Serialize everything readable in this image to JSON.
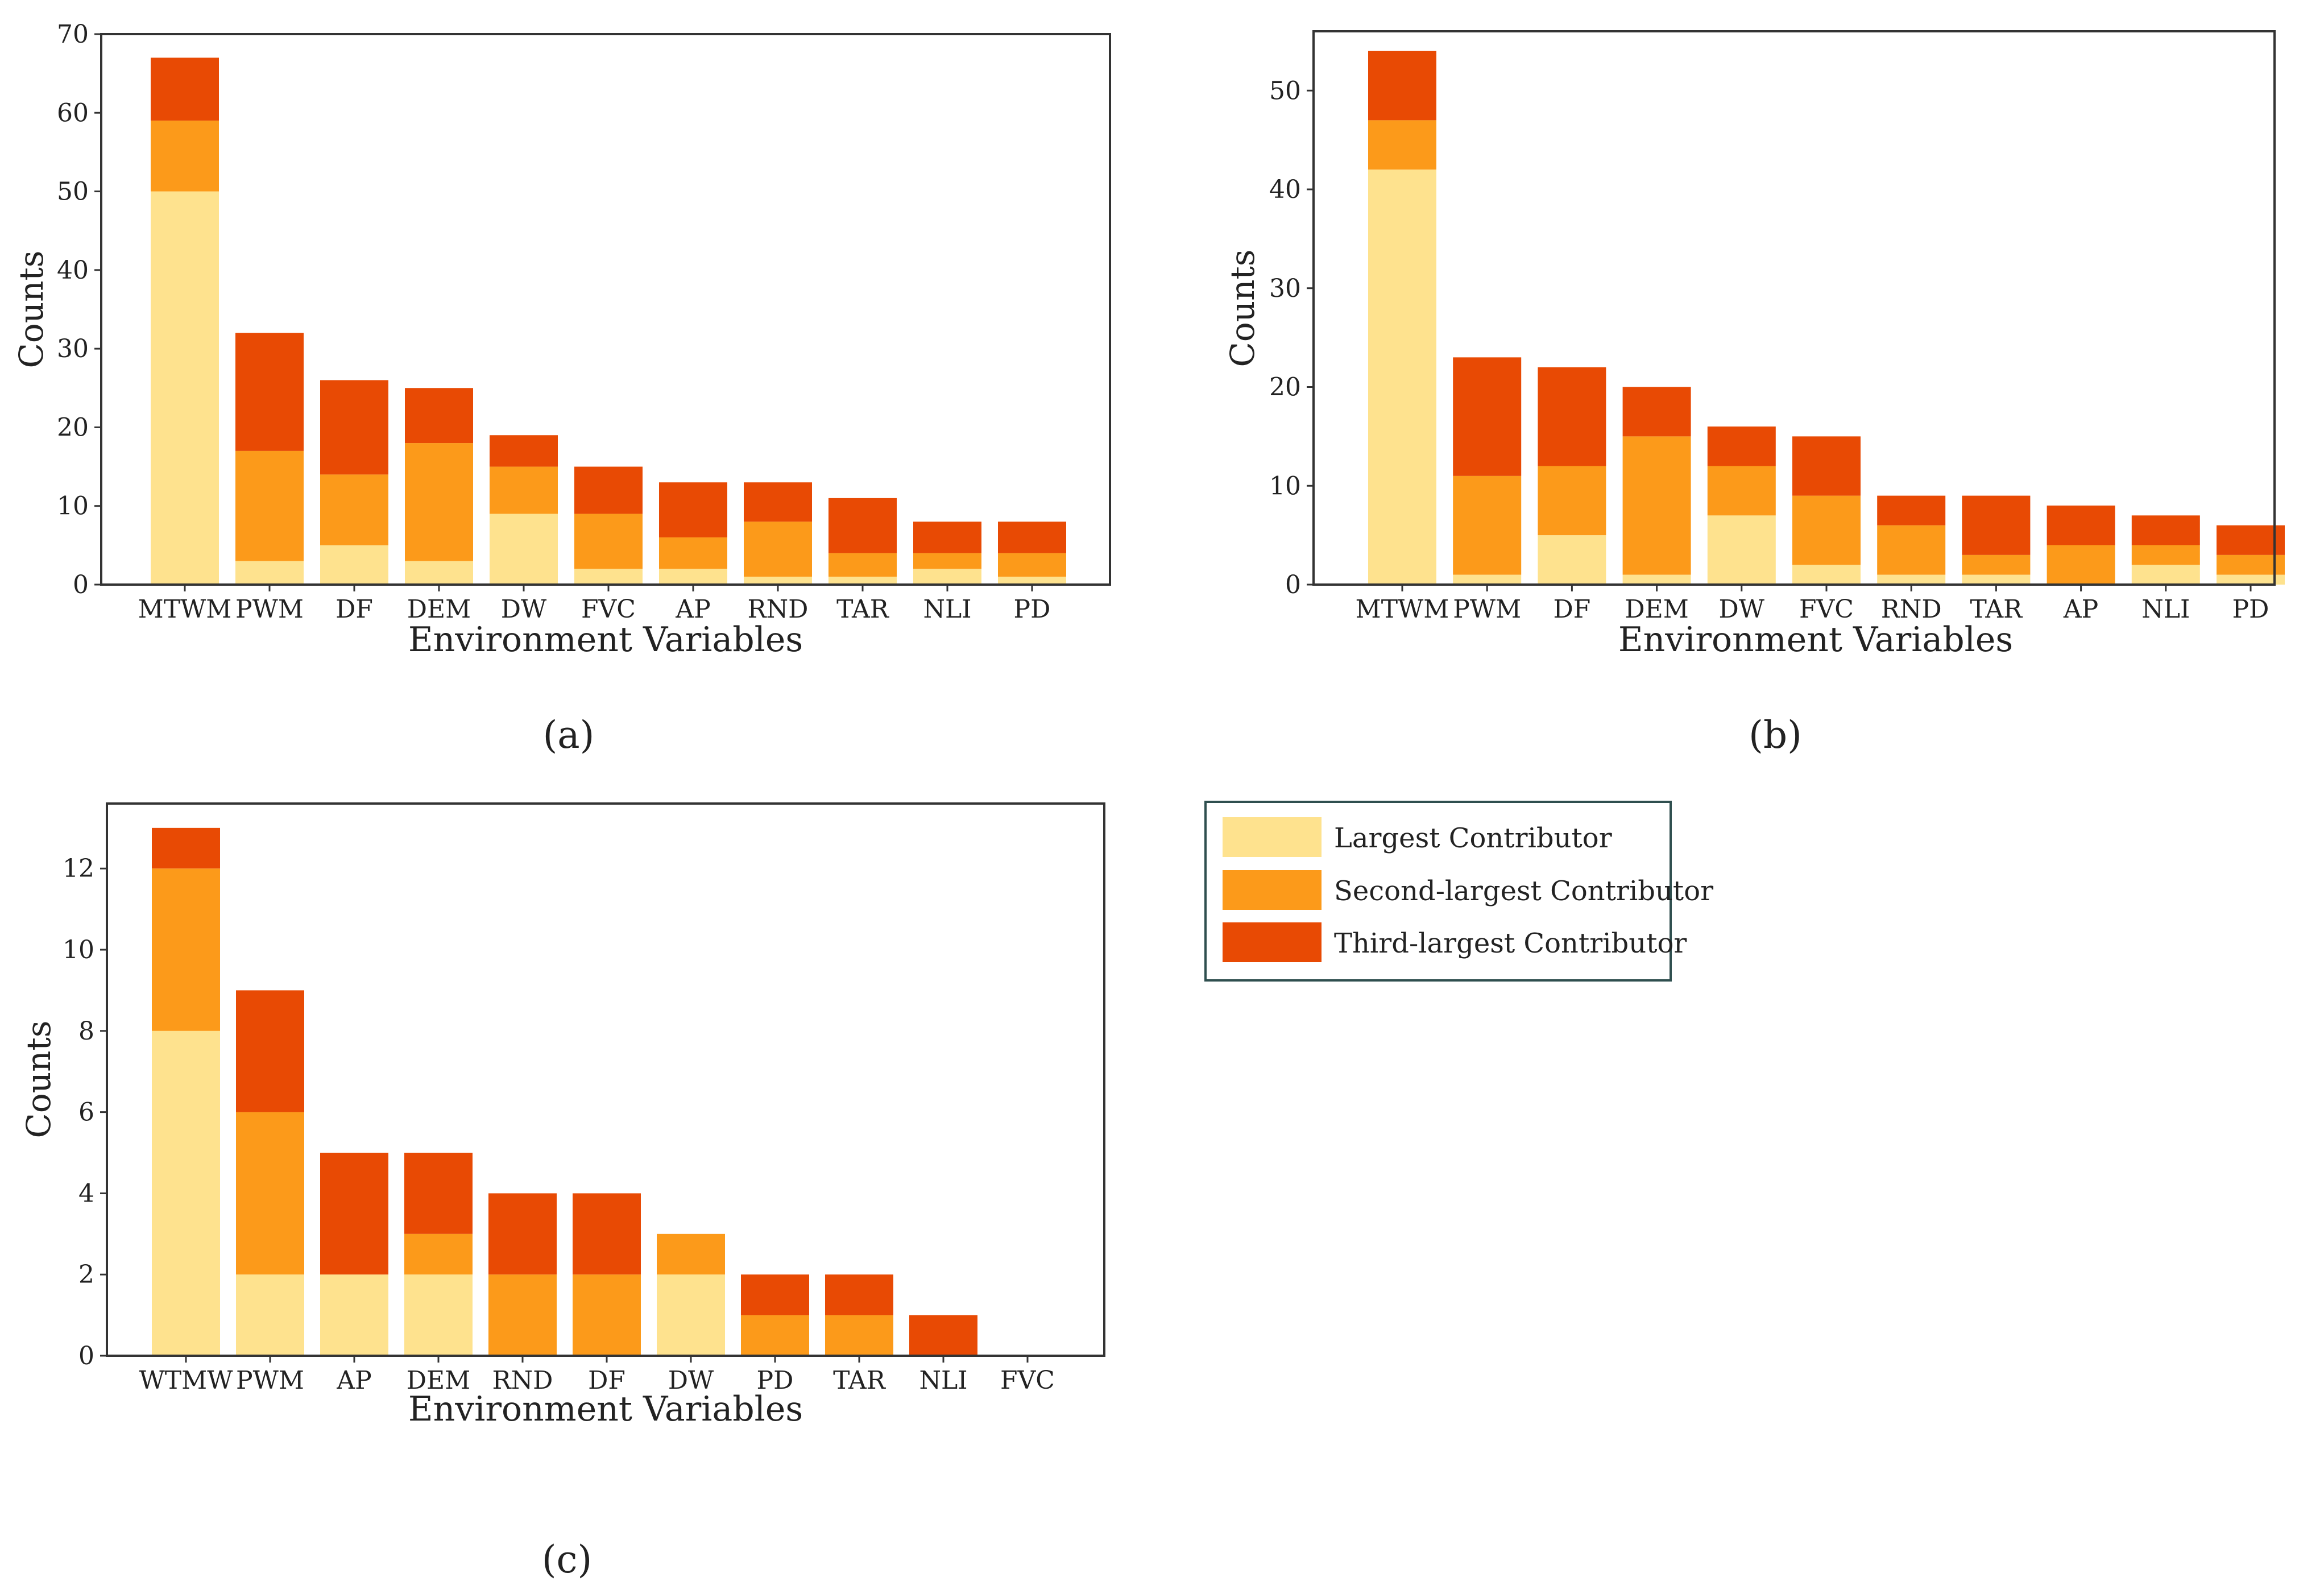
{
  "colors": {
    "largest": "#FEE28E",
    "second": "#FC9A1A",
    "third": "#E84A04",
    "axis": "#333333",
    "legend_border": "#2F4F4F"
  },
  "legend": {
    "items": [
      {
        "label": "Largest Contributor",
        "series": "largest"
      },
      {
        "label": "Second-largest Contributor",
        "series": "second"
      },
      {
        "label": "Third-largest Contributor",
        "series": "third"
      }
    ]
  },
  "chart_data": [
    {
      "id": "a",
      "type": "bar",
      "stacked": true,
      "panel_label": "(a)",
      "xlabel": "Environment Variables",
      "ylabel": "Counts",
      "ylim": [
        0,
        70
      ],
      "yticks": [
        0,
        10,
        20,
        30,
        40,
        50,
        60,
        70
      ],
      "categories": [
        "MTWM",
        "PWM",
        "DF",
        "DEM",
        "DW",
        "FVC",
        "AP",
        "RND",
        "TAR",
        "NLI",
        "PD"
      ],
      "series": [
        {
          "name": "Largest Contributor",
          "key": "largest",
          "values": [
            50,
            3,
            5,
            3,
            9,
            2,
            2,
            1,
            1,
            2,
            1
          ]
        },
        {
          "name": "Second-largest Contributor",
          "key": "second",
          "values": [
            9,
            14,
            9,
            15,
            6,
            7,
            4,
            7,
            3,
            2,
            3
          ]
        },
        {
          "name": "Third-largest Contributor",
          "key": "third",
          "values": [
            8,
            15,
            12,
            7,
            4,
            6,
            7,
            5,
            7,
            4,
            4
          ]
        }
      ]
    },
    {
      "id": "b",
      "type": "bar",
      "stacked": true,
      "panel_label": "(b)",
      "xlabel": "Environment Variables",
      "ylabel": "Counts",
      "ylim": [
        0,
        56
      ],
      "yticks": [
        0,
        10,
        20,
        30,
        40,
        50
      ],
      "categories": [
        "MTWM",
        "PWM",
        "DF",
        "DEM",
        "DW",
        "FVC",
        "RND",
        "TAR",
        "AP",
        "NLI",
        "PD"
      ],
      "series": [
        {
          "name": "Largest Contributor",
          "key": "largest",
          "values": [
            42,
            1,
            5,
            1,
            7,
            2,
            1,
            1,
            0,
            2,
            1
          ]
        },
        {
          "name": "Second-largest Contributor",
          "key": "second",
          "values": [
            5,
            10,
            7,
            14,
            5,
            7,
            5,
            2,
            4,
            2,
            2
          ]
        },
        {
          "name": "Third-largest Contributor",
          "key": "third",
          "values": [
            7,
            12,
            10,
            5,
            4,
            6,
            3,
            6,
            4,
            3,
            3
          ]
        }
      ]
    },
    {
      "id": "c",
      "type": "bar",
      "stacked": true,
      "panel_label": "(c)",
      "xlabel": "Environment Variables",
      "ylabel": "Counts",
      "ylim": [
        0,
        13.6
      ],
      "yticks": [
        0,
        2,
        4,
        6,
        8,
        10,
        12
      ],
      "categories": [
        "WTMW",
        "PWM",
        "AP",
        "DEM",
        "RND",
        "DF",
        "DW",
        "PD",
        "TAR",
        "NLI",
        "FVC"
      ],
      "series": [
        {
          "name": "Largest Contributor",
          "key": "largest",
          "values": [
            8,
            2,
            2,
            2,
            0,
            0,
            2,
            0,
            0,
            0,
            0
          ]
        },
        {
          "name": "Second-largest Contributor",
          "key": "second",
          "values": [
            4,
            4,
            0,
            1,
            2,
            2,
            1,
            1,
            1,
            0,
            0
          ]
        },
        {
          "name": "Third-largest Contributor",
          "key": "third",
          "values": [
            1,
            3,
            3,
            2,
            2,
            2,
            0,
            1,
            1,
            1,
            0
          ]
        }
      ]
    }
  ]
}
